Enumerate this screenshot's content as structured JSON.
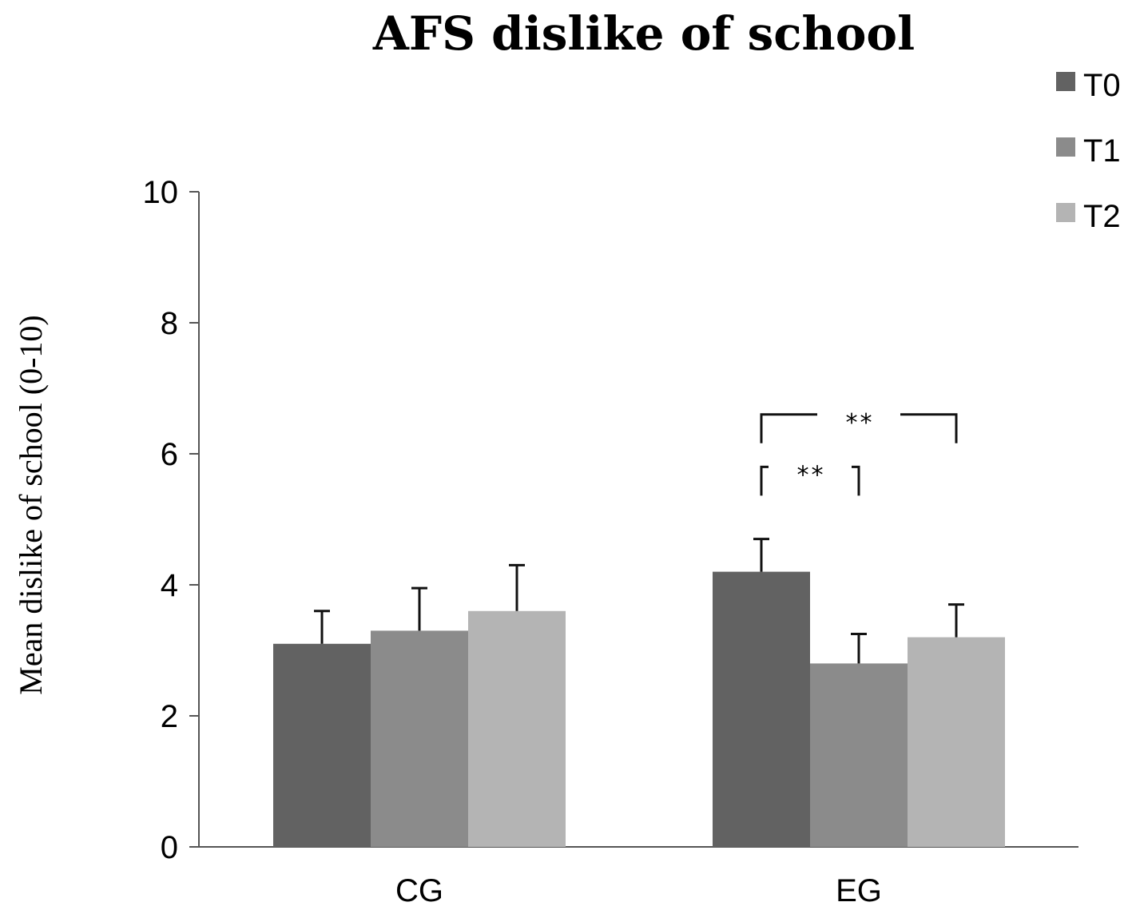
{
  "chart_data": {
    "type": "bar",
    "title": "AFS dislike of school",
    "ylabel": "Mean dislike of school  (0-10)",
    "xlabel": "",
    "ylim": [
      0,
      10
    ],
    "yticks": [
      0,
      2,
      4,
      6,
      8,
      10
    ],
    "categories": [
      "CG",
      "EG"
    ],
    "series": [
      {
        "name": "T0",
        "color": "#626262",
        "values": [
          3.1,
          4.2
        ],
        "errors": [
          0.5,
          0.5
        ]
      },
      {
        "name": "T1",
        "color": "#8b8b8b",
        "values": [
          3.3,
          2.8
        ],
        "errors": [
          0.65,
          0.45
        ]
      },
      {
        "name": "T2",
        "color": "#b4b4b4",
        "values": [
          3.6,
          3.2
        ],
        "errors": [
          0.7,
          0.5
        ]
      }
    ],
    "legend_position": "top-right",
    "grid": false,
    "annotations": [
      {
        "category": "EG",
        "from_series": "T0",
        "to_series": "T1",
        "label": "**",
        "level": 5.8
      },
      {
        "category": "EG",
        "from_series": "T0",
        "to_series": "T2",
        "label": "**",
        "level": 6.6
      }
    ]
  }
}
